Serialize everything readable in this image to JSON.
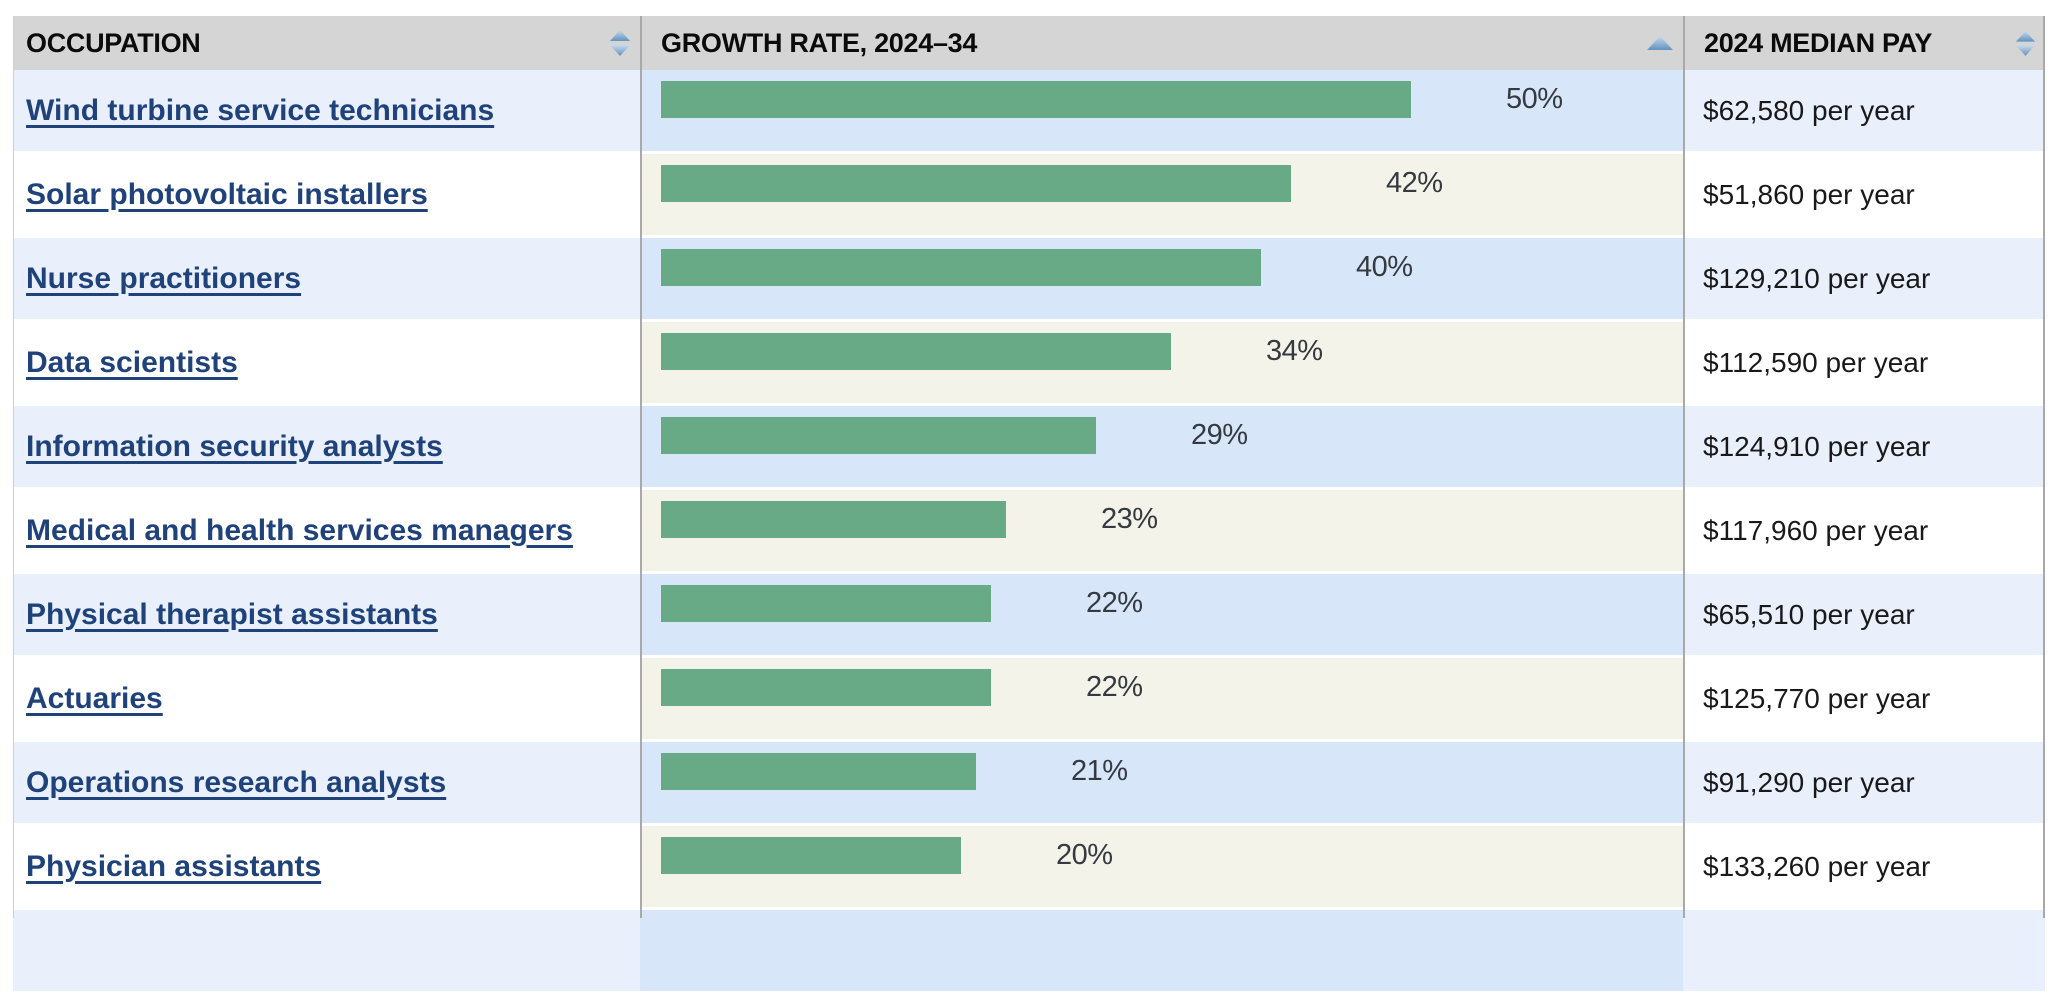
{
  "table": {
    "header": {
      "columns": [
        {
          "id": "occupation",
          "label": "OCCUPATION",
          "sort_state": "sortable"
        },
        {
          "id": "growth",
          "label": "GROWTH RATE, 2024–34",
          "sort_state": "sorted-ascending"
        },
        {
          "id": "pay",
          "label": "2024 MEDIAN PAY",
          "sort_state": "sortable"
        }
      ]
    },
    "rows": [
      {
        "occupation": "Wind turbine service technicians",
        "growth_pct": 50,
        "growth_label": "50%",
        "pay": "$62,580 per year"
      },
      {
        "occupation": "Solar photovoltaic installers",
        "growth_pct": 42,
        "growth_label": "42%",
        "pay": "$51,860 per year"
      },
      {
        "occupation": "Nurse practitioners",
        "growth_pct": 40,
        "growth_label": "40%",
        "pay": "$129,210 per year"
      },
      {
        "occupation": "Data scientists",
        "growth_pct": 34,
        "growth_label": "34%",
        "pay": "$112,590 per year"
      },
      {
        "occupation": "Information security analysts",
        "growth_pct": 29,
        "growth_label": "29%",
        "pay": "$124,910 per year"
      },
      {
        "occupation": "Medical and health services managers",
        "growth_pct": 23,
        "growth_label": "23%",
        "pay": "$117,960 per year"
      },
      {
        "occupation": "Physical therapist assistants",
        "growth_pct": 22,
        "growth_label": "22%",
        "pay": "$65,510 per year"
      },
      {
        "occupation": "Actuaries",
        "growth_pct": 22,
        "growth_label": "22%",
        "pay": "$125,770 per year"
      },
      {
        "occupation": "Operations research analysts",
        "growth_pct": 21,
        "growth_label": "21%",
        "pay": "$91,290 per year"
      },
      {
        "occupation": "Physician assistants",
        "growth_pct": 20,
        "growth_label": "20%",
        "pay": "$133,260 per year"
      }
    ]
  },
  "chart_data": {
    "type": "bar",
    "orientation": "horizontal",
    "title": "",
    "series_name": "Growth rate, 2024–34 (%)",
    "categories": [
      "Wind turbine service technicians",
      "Solar photovoltaic installers",
      "Nurse practitioners",
      "Data scientists",
      "Information security analysts",
      "Medical and health services managers",
      "Physical therapist assistants",
      "Actuaries",
      "Operations research analysts",
      "Physician assistants"
    ],
    "values": [
      50,
      42,
      40,
      34,
      29,
      23,
      22,
      22,
      21,
      20
    ],
    "value_labels": [
      "50%",
      "42%",
      "40%",
      "34%",
      "29%",
      "23%",
      "22%",
      "22%",
      "21%",
      "20%"
    ],
    "pay_values": [
      "$62,580 per year",
      "$51,860 per year",
      "$129,210 per year",
      "$112,590 per year",
      "$124,910 per year",
      "$117,960 per year",
      "$65,510 per year",
      "$125,770 per year",
      "$91,290 per year",
      "$133,260 per year"
    ],
    "xlim": [
      0,
      69
    ],
    "grid": false,
    "legend": "none",
    "sort_order": "ascending by growth rate"
  },
  "colors": {
    "header_bg": "#d5d5d5",
    "row_odd_bg": "#e9f0fc",
    "row_even_bg": "#ffffff",
    "growth_odd_bg": "#d8e6fa",
    "growth_even_bg": "#f4f3e9",
    "bar_green": "#68a986",
    "link_navy": "#20427b",
    "divider_gray": "#a9a9a9",
    "percent_text": "#343a40",
    "pay_text": "#191919",
    "sort_arrow_blue": "#6f9dc7"
  }
}
